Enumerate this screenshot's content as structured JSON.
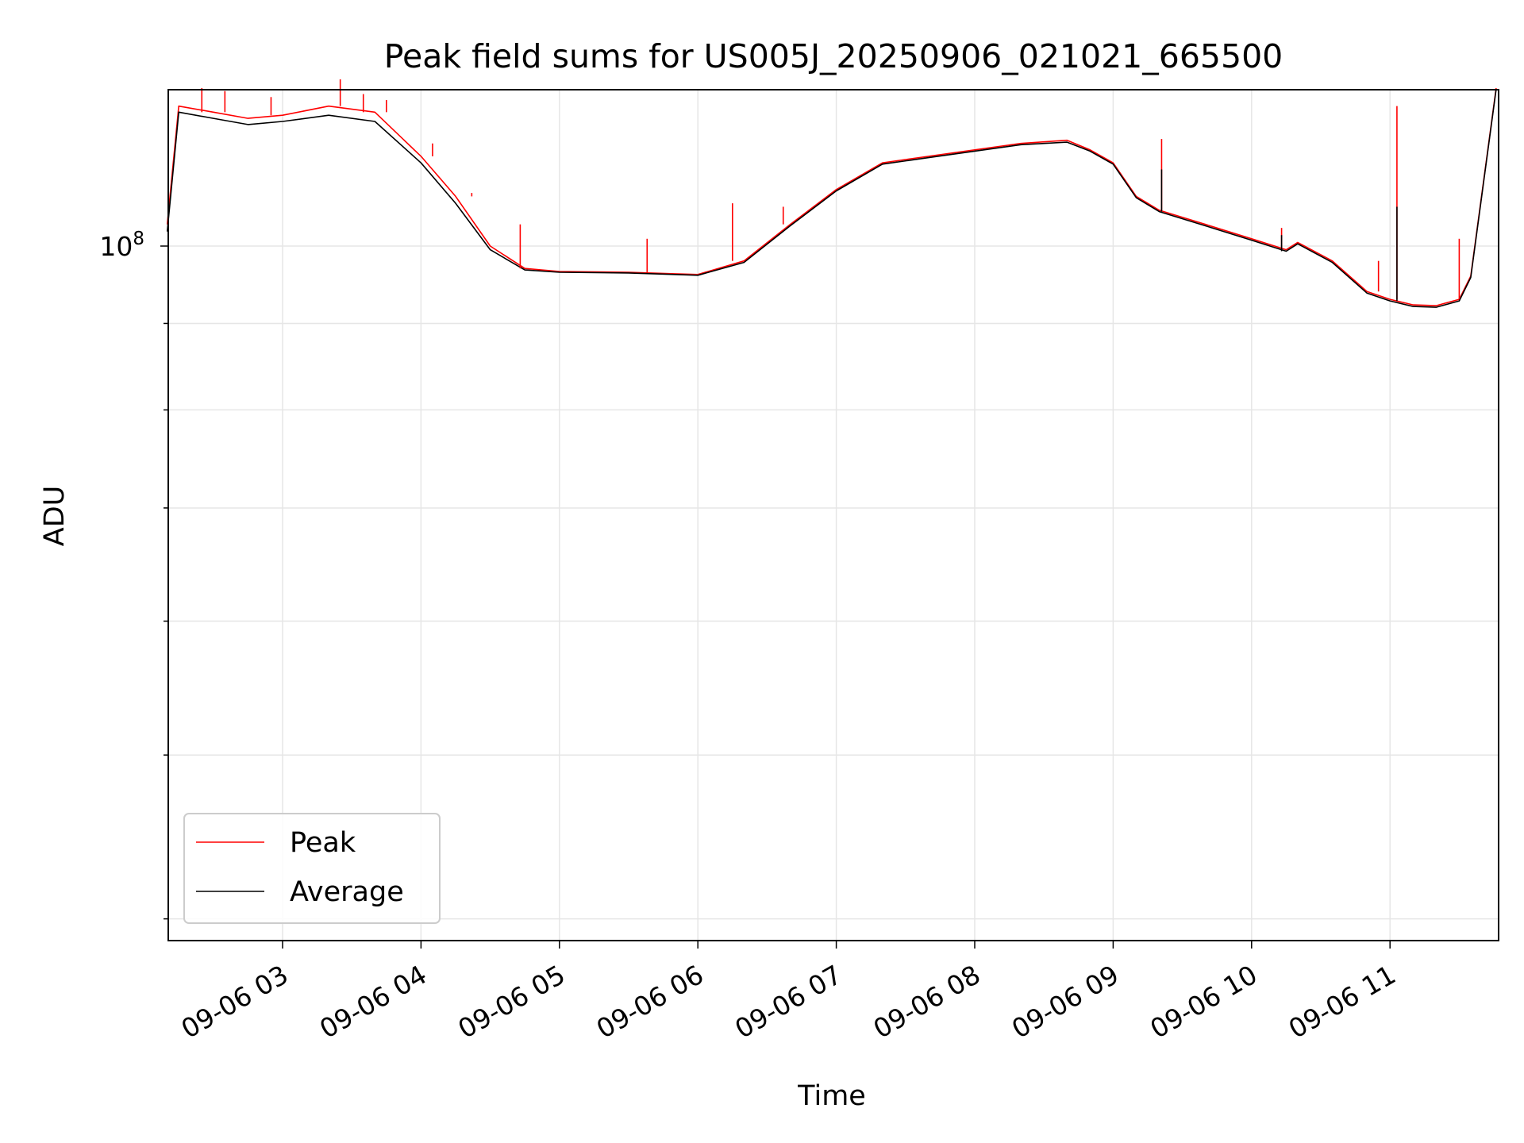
{
  "chart_data": {
    "type": "line",
    "title": "Peak field sums for US005J_20250906_021021_665500",
    "xlabel": "Time",
    "ylabel": "ADU",
    "y_scale": "log",
    "x_tick_labels": [
      "09-06 03",
      "09-06 04",
      "09-06 05",
      "09-06 06",
      "09-06 07",
      "09-06 08",
      "09-06 09",
      "09-06 10",
      "09-06 11"
    ],
    "y_tick_labels": [
      {
        "base": "10",
        "exp": "8"
      }
    ],
    "grid": true,
    "legend_position": "lower-left",
    "series": [
      {
        "name": "Peak",
        "color": "#ff0000",
        "x": [
          "2025-09-06 02:10",
          "2025-09-06 02:15",
          "2025-09-06 02:30",
          "2025-09-06 02:45",
          "2025-09-06 03:00",
          "2025-09-06 03:20",
          "2025-09-06 03:40",
          "2025-09-06 04:00",
          "2025-09-06 04:15",
          "2025-09-06 04:30",
          "2025-09-06 04:45",
          "2025-09-06 05:00",
          "2025-09-06 05:30",
          "2025-09-06 05:50",
          "2025-09-06 06:00",
          "2025-09-06 06:20",
          "2025-09-06 06:40",
          "2025-09-06 07:00",
          "2025-09-06 07:20",
          "2025-09-06 07:40",
          "2025-09-06 08:00",
          "2025-09-06 08:20",
          "2025-09-06 08:40",
          "2025-09-06 08:50",
          "2025-09-06 09:00",
          "2025-09-06 09:10",
          "2025-09-06 09:20",
          "2025-09-06 09:40",
          "2025-09-06 10:00",
          "2025-09-06 10:15",
          "2025-09-06 10:20",
          "2025-09-06 10:35",
          "2025-09-06 10:50",
          "2025-09-06 11:00",
          "2025-09-06 11:10",
          "2025-09-06 11:20",
          "2025-09-06 11:30",
          "2025-09-06 11:35",
          "2025-09-06 11:46"
        ],
        "y": [
          103000000,
          121000000,
          120000000,
          119000000,
          119500000,
          121000000,
          120000000,
          113000000,
          107000000,
          100000000,
          97000000,
          96600000,
          96500000,
          96300000,
          96200000,
          98000000,
          103000000,
          108000000,
          112000000,
          113000000,
          114000000,
          115000000,
          115500000,
          114000000,
          112000000,
          107000000,
          105000000,
          103000000,
          101000000,
          99500000,
          100500000,
          98000000,
          94000000,
          93000000,
          92300000,
          92200000,
          93000000,
          96000000,
          124000000
        ]
      },
      {
        "name": "Average",
        "color": "#000000",
        "x": [
          "2025-09-06 02:10",
          "2025-09-06 02:15",
          "2025-09-06 02:30",
          "2025-09-06 02:45",
          "2025-09-06 03:00",
          "2025-09-06 03:20",
          "2025-09-06 03:40",
          "2025-09-06 04:00",
          "2025-09-06 04:15",
          "2025-09-06 04:30",
          "2025-09-06 04:45",
          "2025-09-06 05:00",
          "2025-09-06 05:30",
          "2025-09-06 05:50",
          "2025-09-06 06:00",
          "2025-09-06 06:20",
          "2025-09-06 06:40",
          "2025-09-06 07:00",
          "2025-09-06 07:20",
          "2025-09-06 07:40",
          "2025-09-06 08:00",
          "2025-09-06 08:20",
          "2025-09-06 08:40",
          "2025-09-06 08:50",
          "2025-09-06 09:00",
          "2025-09-06 09:10",
          "2025-09-06 09:20",
          "2025-09-06 09:40",
          "2025-09-06 10:00",
          "2025-09-06 10:15",
          "2025-09-06 10:20",
          "2025-09-06 10:35",
          "2025-09-06 10:50",
          "2025-09-06 11:00",
          "2025-09-06 11:10",
          "2025-09-06 11:20",
          "2025-09-06 11:30",
          "2025-09-06 11:35",
          "2025-09-06 11:46"
        ],
        "y": [
          102000000,
          120000000,
          119000000,
          118000000,
          118500000,
          119500000,
          118500000,
          112000000,
          106000000,
          99500000,
          96800000,
          96500000,
          96400000,
          96200000,
          96100000,
          97800000,
          102800000,
          107800000,
          111800000,
          112800000,
          113800000,
          114800000,
          115200000,
          113800000,
          111800000,
          106800000,
          104800000,
          102800000,
          100800000,
          99300000,
          100300000,
          97800000,
          93800000,
          92800000,
          92100000,
          92000000,
          92800000,
          95800000,
          123800000
        ]
      }
    ],
    "spikes": {
      "Peak": [
        {
          "x": "2025-09-06 02:25",
          "y": 124000000
        },
        {
          "x": "2025-09-06 02:35",
          "y": 123500000
        },
        {
          "x": "2025-09-06 02:55",
          "y": 122500000
        },
        {
          "x": "2025-09-06 03:25",
          "y": 125500000
        },
        {
          "x": "2025-09-06 03:35",
          "y": 123000000
        },
        {
          "x": "2025-09-06 03:45",
          "y": 122000000
        },
        {
          "x": "2025-09-06 04:05",
          "y": 115000000
        },
        {
          "x": "2025-09-06 04:22",
          "y": 107500000
        },
        {
          "x": "2025-09-06 04:43",
          "y": 103000000
        },
        {
          "x": "2025-09-06 05:38",
          "y": 101000000
        },
        {
          "x": "2025-09-06 06:15",
          "y": 106000000
        },
        {
          "x": "2025-09-06 06:37",
          "y": 105500000
        },
        {
          "x": "2025-09-06 09:21",
          "y": 115700000
        },
        {
          "x": "2025-09-06 10:13",
          "y": 102500000
        },
        {
          "x": "2025-09-06 10:55",
          "y": 98000000
        },
        {
          "x": "2025-09-06 11:03",
          "y": 121000000
        },
        {
          "x": "2025-09-06 11:30",
          "y": 101000000
        }
      ],
      "Average": [
        {
          "x": "2025-09-06 09:21",
          "y": 111000000
        },
        {
          "x": "2025-09-06 10:13",
          "y": 101500000
        },
        {
          "x": "2025-09-06 11:03",
          "y": 105500000
        }
      ]
    }
  }
}
